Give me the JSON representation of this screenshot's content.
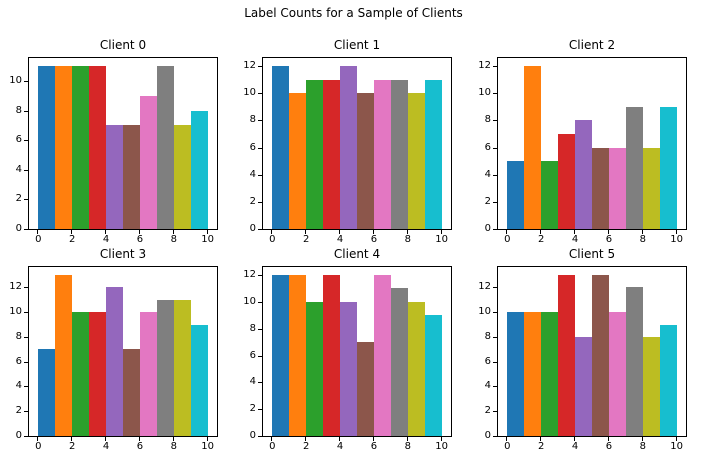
{
  "figure": {
    "suptitle": "Label Counts for a Sample of Clients",
    "background": "#ffffff",
    "spine_color": "#000000"
  },
  "palette": [
    "#1f77b4",
    "#ff7f0e",
    "#2ca02c",
    "#d62728",
    "#9467bd",
    "#8c564b",
    "#e377c2",
    "#7f7f7f",
    "#bcbd22",
    "#17becf"
  ],
  "palette_names": [
    "tab-blue",
    "tab-orange",
    "tab-green",
    "tab-red",
    "tab-purple",
    "tab-brown",
    "tab-pink",
    "tab-gray",
    "tab-olive",
    "tab-cyan"
  ],
  "chart_data": [
    {
      "type": "bar",
      "title": "Client 0",
      "categories": [
        0,
        1,
        2,
        3,
        4,
        5,
        6,
        7,
        8,
        9
      ],
      "values": [
        11,
        11,
        11,
        11,
        7,
        7,
        9,
        11,
        7,
        8
      ],
      "xticks": [
        0,
        2,
        4,
        6,
        8,
        10
      ],
      "yticks": [
        0,
        2,
        4,
        6,
        8,
        10
      ],
      "xlim": [
        -0.55,
        10.55
      ],
      "ylim": [
        0,
        11.55
      ],
      "grid": false,
      "legend": false
    },
    {
      "type": "bar",
      "title": "Client 1",
      "categories": [
        0,
        1,
        2,
        3,
        4,
        5,
        6,
        7,
        8,
        9
      ],
      "values": [
        12,
        10,
        11,
        11,
        12,
        10,
        11,
        11,
        10,
        11
      ],
      "xticks": [
        0,
        2,
        4,
        6,
        8,
        10
      ],
      "yticks": [
        0,
        2,
        4,
        6,
        8,
        10,
        12
      ],
      "xlim": [
        -0.55,
        10.55
      ],
      "ylim": [
        0,
        12.6
      ],
      "grid": false,
      "legend": false
    },
    {
      "type": "bar",
      "title": "Client 2",
      "categories": [
        0,
        1,
        2,
        3,
        4,
        5,
        6,
        7,
        8,
        9
      ],
      "values": [
        5,
        12,
        5,
        7,
        8,
        6,
        6,
        9,
        6,
        9
      ],
      "xticks": [
        0,
        2,
        4,
        6,
        8,
        10
      ],
      "yticks": [
        0,
        2,
        4,
        6,
        8,
        10,
        12
      ],
      "xlim": [
        -0.55,
        10.55
      ],
      "ylim": [
        0,
        12.6
      ],
      "grid": false,
      "legend": false
    },
    {
      "type": "bar",
      "title": "Client 3",
      "categories": [
        0,
        1,
        2,
        3,
        4,
        5,
        6,
        7,
        8,
        9
      ],
      "values": [
        7,
        13,
        10,
        10,
        12,
        7,
        10,
        11,
        11,
        9
      ],
      "xticks": [
        0,
        2,
        4,
        6,
        8,
        10
      ],
      "yticks": [
        0,
        2,
        4,
        6,
        8,
        10,
        12
      ],
      "xlim": [
        -0.55,
        10.55
      ],
      "ylim": [
        0,
        13.65
      ],
      "grid": false,
      "legend": false
    },
    {
      "type": "bar",
      "title": "Client 4",
      "categories": [
        0,
        1,
        2,
        3,
        4,
        5,
        6,
        7,
        8,
        9
      ],
      "values": [
        12,
        12,
        10,
        12,
        10,
        7,
        12,
        11,
        10,
        9
      ],
      "xticks": [
        0,
        2,
        4,
        6,
        8,
        10
      ],
      "yticks": [
        0,
        2,
        4,
        6,
        8,
        10,
        12
      ],
      "xlim": [
        -0.55,
        10.55
      ],
      "ylim": [
        0,
        12.6
      ],
      "grid": false,
      "legend": false
    },
    {
      "type": "bar",
      "title": "Client 5",
      "categories": [
        0,
        1,
        2,
        3,
        4,
        5,
        6,
        7,
        8,
        9
      ],
      "values": [
        10,
        10,
        10,
        13,
        8,
        13,
        10,
        12,
        8,
        9
      ],
      "xticks": [
        0,
        2,
        4,
        6,
        8,
        10
      ],
      "yticks": [
        0,
        2,
        4,
        6,
        8,
        10,
        12
      ],
      "xlim": [
        -0.55,
        10.55
      ],
      "ylim": [
        0,
        13.65
      ],
      "grid": false,
      "legend": false
    }
  ]
}
